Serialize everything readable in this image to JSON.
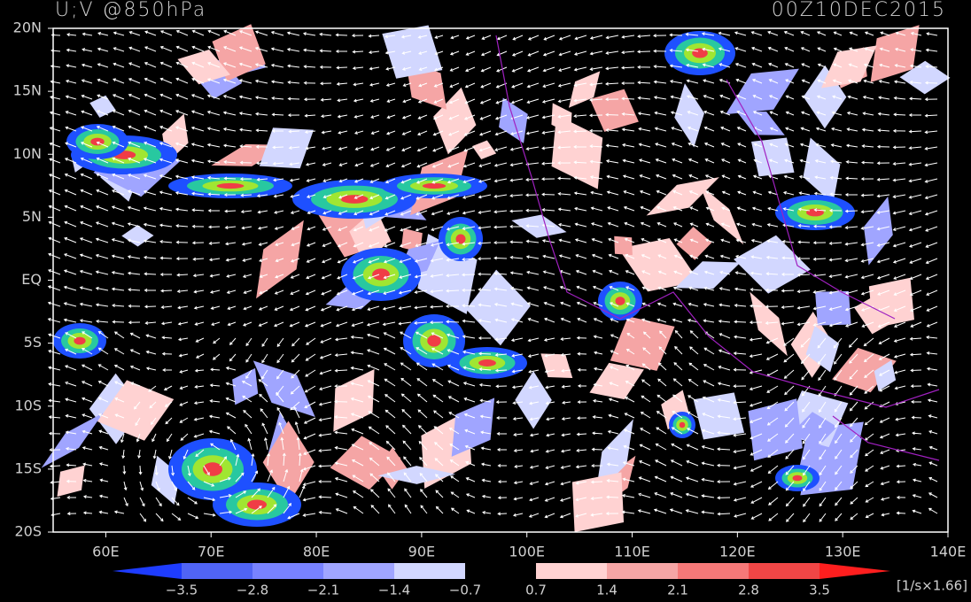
{
  "header": {
    "title": "U;V @850hPa",
    "time": "00Z10DEC2015"
  },
  "map": {
    "lat_labels": [
      "20N",
      "15N",
      "10N",
      "5N",
      "EQ",
      "5S",
      "10S",
      "15S",
      "20S"
    ],
    "lon_labels": [
      "60E",
      "70E",
      "80E",
      "90E",
      "100E",
      "110E",
      "120E",
      "130E",
      "140E"
    ]
  },
  "colorbar": {
    "labels": [
      "−3.5",
      "−2.8",
      "−2.1",
      "−1.4",
      "−0.7",
      "0.7",
      "1.4",
      "2.1",
      "2.8",
      "3.5"
    ],
    "unit": "[1/s×1.66]"
  }
}
